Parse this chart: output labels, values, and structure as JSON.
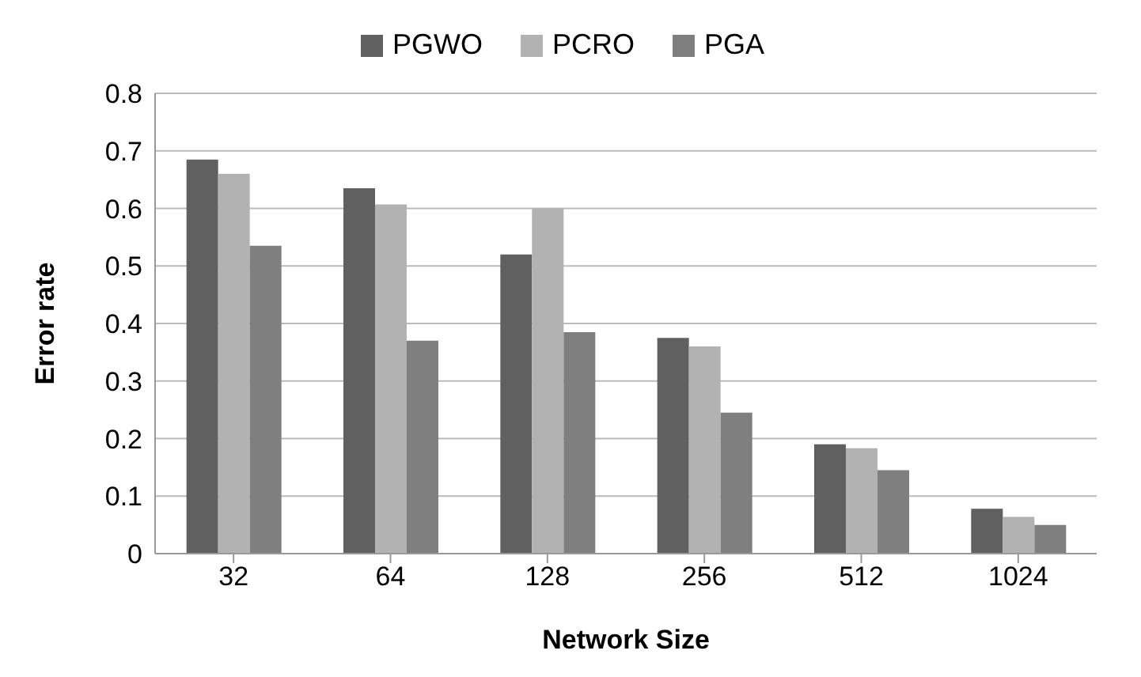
{
  "chart_data": {
    "type": "bar",
    "xlabel": "Network Size",
    "ylabel": "Error rate",
    "categories": [
      "32",
      "64",
      "128",
      "256",
      "512",
      "1024"
    ],
    "series": [
      {
        "name": "PGWO",
        "color": "#606060",
        "values": [
          0.685,
          0.635,
          0.52,
          0.375,
          0.19,
          0.078
        ]
      },
      {
        "name": "PCRO",
        "color": "#b2b2b2",
        "values": [
          0.66,
          0.607,
          0.6,
          0.36,
          0.183,
          0.064
        ]
      },
      {
        "name": "PGA",
        "color": "#7f7f7f",
        "values": [
          0.535,
          0.37,
          0.385,
          0.245,
          0.145,
          0.05
        ]
      }
    ],
    "ylim": [
      0,
      0.8
    ],
    "yticks": [
      0,
      0.1,
      0.2,
      0.3,
      0.4,
      0.5,
      0.6,
      0.7,
      0.8
    ],
    "grid": "y",
    "legend": "top"
  }
}
